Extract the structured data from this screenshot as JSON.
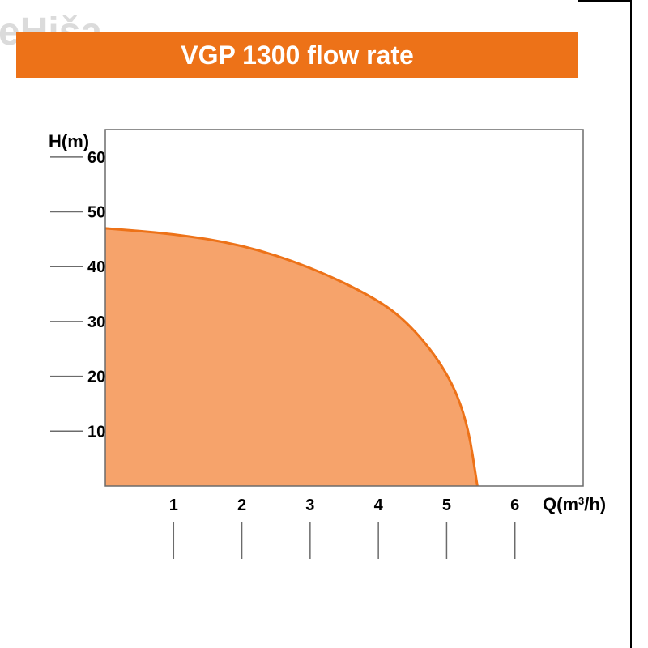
{
  "watermark": "eHiša",
  "title": {
    "text": "VGP 1300 flow rate",
    "bg_color": "#ed7218",
    "text_color": "#ffffff",
    "fontsize": 32,
    "fontweight": 700
  },
  "chart": {
    "type": "area",
    "background_color": "#ffffff",
    "plot_border_color": "#6b6b6b",
    "plot_border_width": 1.5,
    "y_axis": {
      "label": "H(m)",
      "label_fontsize": 22,
      "label_fontweight": 700,
      "min": 0,
      "max": 65,
      "ticks": [
        10,
        20,
        30,
        40,
        50,
        60
      ],
      "tick_fontsize": 20,
      "tick_fontweight": 700,
      "tick_line_color": "#6b6b6b",
      "tick_line_width": 1.5
    },
    "x_axis": {
      "label": "Q(m³/h)",
      "label_fontsize": 22,
      "label_fontweight": 700,
      "min": 0,
      "max": 7,
      "ticks": [
        1,
        2,
        3,
        4,
        5,
        6
      ],
      "tick_fontsize": 20,
      "tick_fontweight": 700,
      "tick_line_color": "#6b6b6b",
      "tick_line_width": 1.5
    },
    "curve": {
      "fill_color": "#f6a36b",
      "stroke_color": "#ed7218",
      "stroke_width": 3,
      "points": [
        {
          "x": 0.0,
          "y": 47
        },
        {
          "x": 1.0,
          "y": 46
        },
        {
          "x": 2.0,
          "y": 44
        },
        {
          "x": 3.0,
          "y": 40
        },
        {
          "x": 4.0,
          "y": 34
        },
        {
          "x": 4.5,
          "y": 29
        },
        {
          "x": 5.0,
          "y": 21
        },
        {
          "x": 5.3,
          "y": 12
        },
        {
          "x": 5.45,
          "y": 0
        }
      ]
    }
  },
  "misc": {
    "right_rule_color": "#000000"
  }
}
